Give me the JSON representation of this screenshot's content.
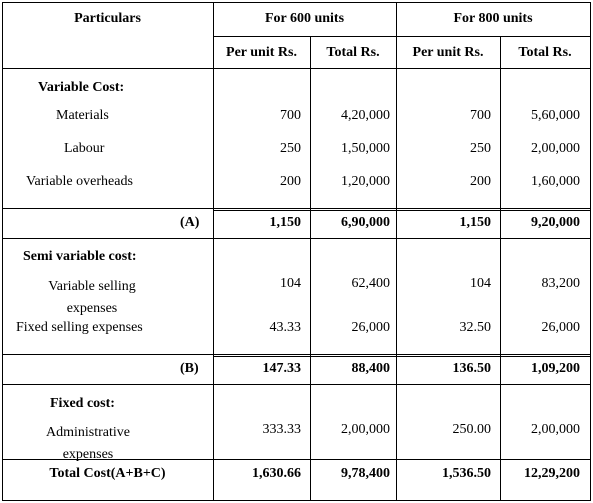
{
  "header": {
    "particulars": "Particulars",
    "group_600": "For 600 units",
    "group_800": "For 800 units",
    "per_unit": "Per unit Rs.",
    "total": "Total Rs."
  },
  "variable_cost": {
    "heading": "Variable Cost:",
    "rows": [
      {
        "label": "Materials",
        "pu600": "700",
        "tot600": "4,20,000",
        "pu800": "700",
        "tot800": "5,60,000"
      },
      {
        "label": "Labour",
        "pu600": "250",
        "tot600": "1,50,000",
        "pu800": "250",
        "tot800": "2,00,000"
      },
      {
        "label": "Variable overheads",
        "pu600": "200",
        "tot600": "1,20,000",
        "pu800": "200",
        "tot800": "1,60,000"
      }
    ],
    "subtotal": {
      "label": "(A)",
      "pu600": "1,150",
      "tot600": "6,90,000",
      "pu800": "1,150",
      "tot800": "9,20,000"
    }
  },
  "semi_variable_cost": {
    "heading": "Semi variable cost:",
    "rows": [
      {
        "label": "Variable selling expenses",
        "pu600": "104",
        "tot600": "62,400",
        "pu800": "104",
        "tot800": "83,200"
      },
      {
        "label": "Fixed selling expenses",
        "pu600": "43.33",
        "tot600": "26,000",
        "pu800": "32.50",
        "tot800": "26,000"
      }
    ],
    "subtotal": {
      "label": "(B)",
      "pu600": "147.33",
      "tot600": "88,400",
      "pu800": "136.50",
      "tot800": "1,09,200"
    }
  },
  "fixed_cost": {
    "heading": "Fixed cost:",
    "rows": [
      {
        "label": "Administrative expenses",
        "pu600": "333.33",
        "tot600": "2,00,000",
        "pu800": "250.00",
        "tot800": "2,00,000"
      }
    ]
  },
  "total": {
    "label": "Total Cost(A+B+C)",
    "pu600": "1,630.66",
    "tot600": "9,78,400",
    "pu800": "1,536.50",
    "tot800": "12,29,200"
  }
}
